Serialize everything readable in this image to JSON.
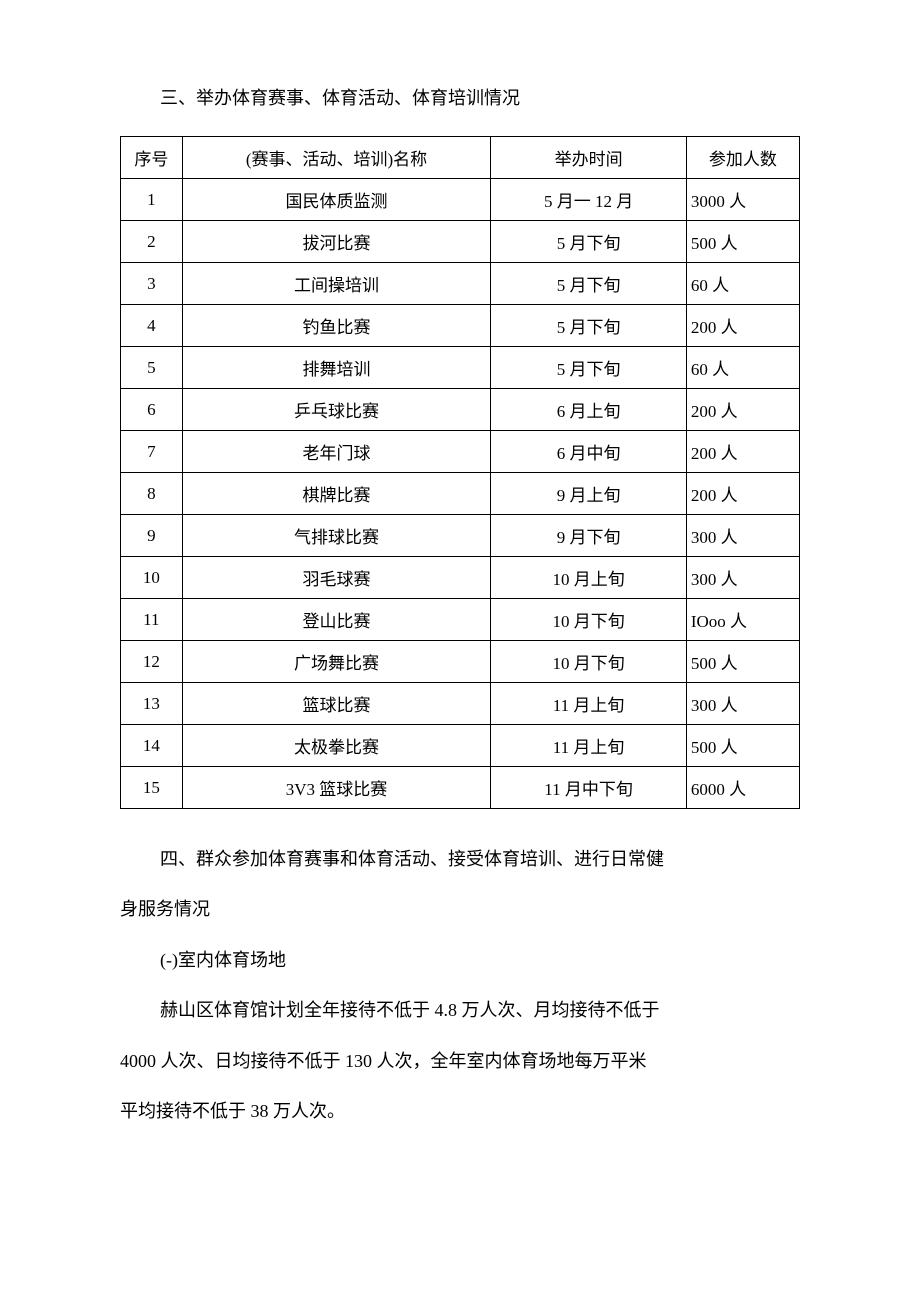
{
  "section3": {
    "heading": "三、举办体育赛事、体育活动、体育培训情况"
  },
  "table": {
    "columns": [
      "序号",
      "(赛事、活动、培训)名称",
      "举办时间",
      "参加人数"
    ],
    "rows": [
      [
        "1",
        "国民体质监测",
        "5 月一 12 月",
        "3000 人"
      ],
      [
        "2",
        "拔河比赛",
        "5 月下旬",
        "500 人"
      ],
      [
        "3",
        "工间操培训",
        "5 月下旬",
        "60 人"
      ],
      [
        "4",
        "钓鱼比赛",
        "5 月下旬",
        "200 人"
      ],
      [
        "5",
        "排舞培训",
        "5 月下旬",
        "60 人"
      ],
      [
        "6",
        "乒乓球比赛",
        "6 月上旬",
        "200 人"
      ],
      [
        "7",
        "老年门球",
        "6 月中旬",
        "200 人"
      ],
      [
        "8",
        "棋牌比赛",
        "9 月上旬",
        "200 人"
      ],
      [
        "9",
        "气排球比赛",
        "9 月下旬",
        "300 人"
      ],
      [
        "10",
        "羽毛球赛",
        "10 月上旬",
        "300 人"
      ],
      [
        "11",
        "登山比赛",
        "10 月下旬",
        "IOoo 人"
      ],
      [
        "12",
        "广场舞比赛",
        "10 月下旬",
        "500 人"
      ],
      [
        "13",
        "篮球比赛",
        "11 月上旬",
        "300 人"
      ],
      [
        "14",
        "太极拳比赛",
        "11 月上旬",
        "500 人"
      ],
      [
        "15",
        "3V3 篮球比赛",
        "11 月中下旬",
        "6000 人"
      ]
    ]
  },
  "section4": {
    "heading_line1": "四、群众参加体育赛事和体育活动、接受体育培训、进行日常健",
    "heading_line2": "身服务情况",
    "sub1": "(-)室内体育场地",
    "para_line1": "赫山区体育馆计划全年接待不低于 4.8 万人次、月均接待不低于",
    "para_line2": "4000 人次、日均接待不低于 130 人次，全年室内体育场地每万平米",
    "para_line3": "平均接待不低于 38 万人次。"
  }
}
